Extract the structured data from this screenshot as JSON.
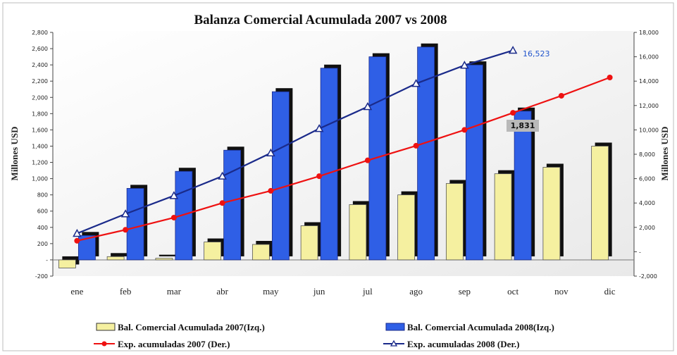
{
  "chart_data": {
    "type": "bar",
    "title": "Balanza Comercial Acumulada 2007 vs 2008",
    "ylabel_left": "Millones USD",
    "ylabel_right": "Millones USD",
    "categories": [
      "ene",
      "feb",
      "mar",
      "abr",
      "may",
      "jun",
      "jul",
      "ago",
      "sep",
      "oct",
      "nov",
      "dic"
    ],
    "ylim_left": [
      -200,
      2800
    ],
    "ylim_right": [
      -2000,
      18000
    ],
    "yticks_left": [
      "-200",
      "-",
      "200",
      "400",
      "600",
      "800",
      "1,000",
      "1,200",
      "1,400",
      "1,600",
      "1,800",
      "2,000",
      "2,200",
      "2,400",
      "2,600",
      "2,800"
    ],
    "yticks_right": [
      "-2,000",
      "-",
      "2,000",
      "4,000",
      "6,000",
      "8,000",
      "10,000",
      "12,000",
      "14,000",
      "16,000",
      "18,000"
    ],
    "grid": false,
    "legend_position": "bottom",
    "series": [
      {
        "name": "Bal. Comercial Acumulada 2007(Izq.)",
        "type": "bar",
        "axis": "left",
        "color": "#f5f0a0",
        "values": [
          -100,
          40,
          20,
          220,
          190,
          420,
          680,
          800,
          940,
          1060,
          1140,
          1400
        ]
      },
      {
        "name": "Bal. Comercial Acumulada 2008(Izq.)",
        "type": "bar",
        "axis": "left",
        "color": "#2f5fe6",
        "values": [
          300,
          880,
          1090,
          1350,
          2070,
          2360,
          2500,
          2620,
          2400,
          1831,
          null,
          null
        ]
      },
      {
        "name": "Exp. acumuladas 2007 (Der.)",
        "type": "line",
        "axis": "right",
        "color": "#ee1111",
        "values": [
          900,
          1800,
          2800,
          4000,
          5000,
          6200,
          7500,
          8700,
          10000,
          11400,
          12800,
          14300
        ]
      },
      {
        "name": "Exp. acumuladas 2008 (Der.)",
        "type": "line",
        "axis": "right",
        "color": "#1a2a8a",
        "values": [
          1500,
          3100,
          4600,
          6200,
          8100,
          10100,
          11900,
          13800,
          15300,
          16523,
          null,
          null
        ]
      }
    ],
    "annotations": [
      {
        "text": "16,523"
      },
      {
        "text": "1,831"
      }
    ]
  }
}
